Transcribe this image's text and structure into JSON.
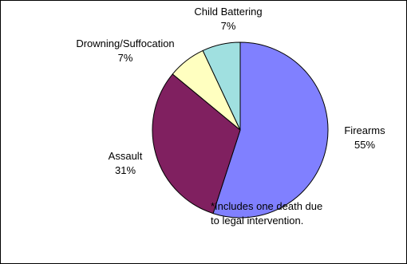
{
  "chart_data": {
    "type": "pie",
    "title": "",
    "slices": [
      {
        "label": "Firearms",
        "value": 55,
        "display": "55%",
        "color": "#8080ff"
      },
      {
        "label": "Assault",
        "value": 31,
        "display": "31%",
        "color": "#802060"
      },
      {
        "label": "Drowning/Suffocation",
        "value": 7,
        "display": "7%",
        "color": "#ffffc0"
      },
      {
        "label": "Child Battering",
        "value": 7,
        "display": "7%",
        "color": "#a0e0e0"
      }
    ],
    "start": "12 o'clock",
    "direction": "clockwise",
    "legend": "none",
    "footnote": "*Includes one death due to legal intervention.",
    "footnote_lines": [
      "*Includes one death due",
      "to legal intervention."
    ]
  }
}
